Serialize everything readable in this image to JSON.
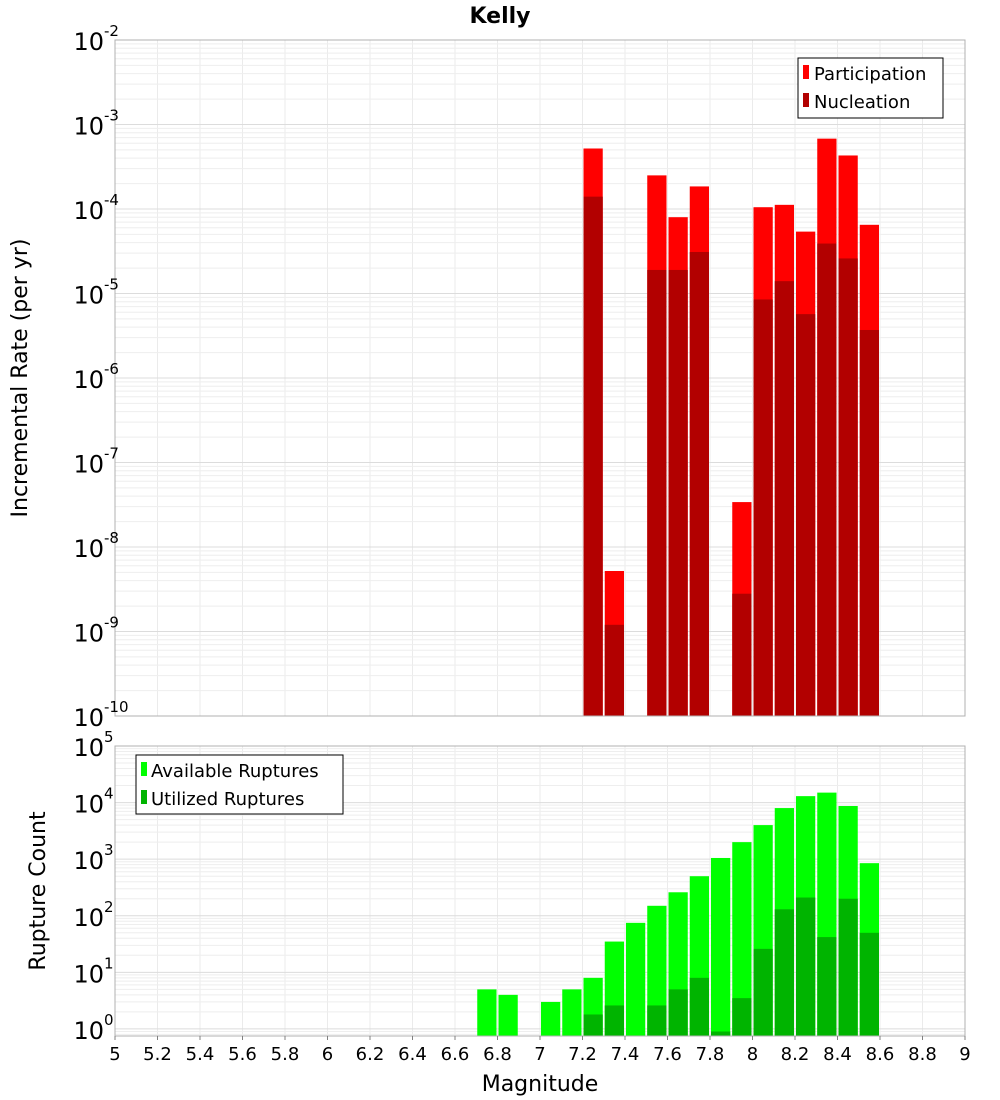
{
  "chart_data": [
    {
      "type": "bar",
      "title": "Kelly",
      "xlabel": "",
      "ylabel": "Incremental Rate (per yr)",
      "y_scale": "log",
      "ylim": [
        1e-10,
        0.01
      ],
      "xlim": [
        5,
        9
      ],
      "y_ticks": [
        {
          "base": "10",
          "exp": "-10",
          "value": 1e-10
        },
        {
          "base": "10",
          "exp": "-9",
          "value": 1e-09
        },
        {
          "base": "10",
          "exp": "-8",
          "value": 1e-08
        },
        {
          "base": "10",
          "exp": "-7",
          "value": 1e-07
        },
        {
          "base": "10",
          "exp": "-6",
          "value": 1e-06
        },
        {
          "base": "10",
          "exp": "-5",
          "value": 1e-05
        },
        {
          "base": "10",
          "exp": "-4",
          "value": 0.0001
        },
        {
          "base": "10",
          "exp": "-3",
          "value": 0.001
        },
        {
          "base": "10",
          "exp": "-2",
          "value": 0.01
        }
      ],
      "x": [
        7.25,
        7.35,
        7.55,
        7.65,
        7.75,
        7.95,
        8.05,
        8.15,
        8.25,
        8.35,
        8.45,
        8.55
      ],
      "series": [
        {
          "name": "Participation",
          "color": "#ff0000",
          "values": [
            0.00052,
            5.2e-09,
            0.00025,
            8e-05,
            0.000185,
            3.4e-08,
            0.000105,
            0.000112,
            5.4e-05,
            0.00068,
            0.00043,
            6.5e-05
          ]
        },
        {
          "name": "Nucleation",
          "color": "#b20000",
          "values": [
            0.00014,
            1.2e-09,
            1.9e-05,
            1.9e-05,
            3.1e-05,
            2.8e-09,
            8.5e-06,
            1.4e-05,
            5.7e-06,
            3.9e-05,
            2.6e-05,
            3.7e-06
          ]
        }
      ],
      "legend": "top-right",
      "grid": true
    },
    {
      "type": "bar",
      "title": "",
      "xlabel": "Magnitude",
      "ylabel": "Rupture Count",
      "y_scale": "log",
      "ylim": [
        0.75,
        100000
      ],
      "xlim": [
        5,
        9
      ],
      "y_ticks": [
        {
          "base": "10",
          "exp": "0",
          "value": 1
        },
        {
          "base": "10",
          "exp": "1",
          "value": 10
        },
        {
          "base": "10",
          "exp": "2",
          "value": 100
        },
        {
          "base": "10",
          "exp": "3",
          "value": 1000
        },
        {
          "base": "10",
          "exp": "4",
          "value": 10000
        },
        {
          "base": "10",
          "exp": "5",
          "value": 100000
        }
      ],
      "x_ticks": [
        "5",
        "5.2",
        "5.4",
        "5.6",
        "5.8",
        "6",
        "6.2",
        "6.4",
        "6.6",
        "6.8",
        "7",
        "7.2",
        "7.4",
        "7.6",
        "7.8",
        "8",
        "8.2",
        "8.4",
        "8.6",
        "8.8",
        "9"
      ],
      "x": [
        6.75,
        6.85,
        7.05,
        7.15,
        7.25,
        7.35,
        7.45,
        7.55,
        7.65,
        7.75,
        7.85,
        7.95,
        8.05,
        8.15,
        8.25,
        8.35,
        8.45,
        8.55
      ],
      "series": [
        {
          "name": "Available Ruptures",
          "color": "#00ff00",
          "values": [
            5,
            4,
            3,
            5,
            8,
            35,
            75,
            150,
            260,
            500,
            1050,
            2000,
            4000,
            8000,
            13000,
            15000,
            8700,
            850
          ]
        },
        {
          "name": "Utilized Ruptures",
          "color": "#00b400",
          "values": [
            0,
            0,
            0,
            0,
            1.8,
            2.6,
            0,
            2.6,
            5,
            8,
            0.9,
            3.5,
            26,
            130,
            210,
            42,
            200,
            50
          ]
        }
      ],
      "legend": "top-left",
      "grid": true
    }
  ]
}
